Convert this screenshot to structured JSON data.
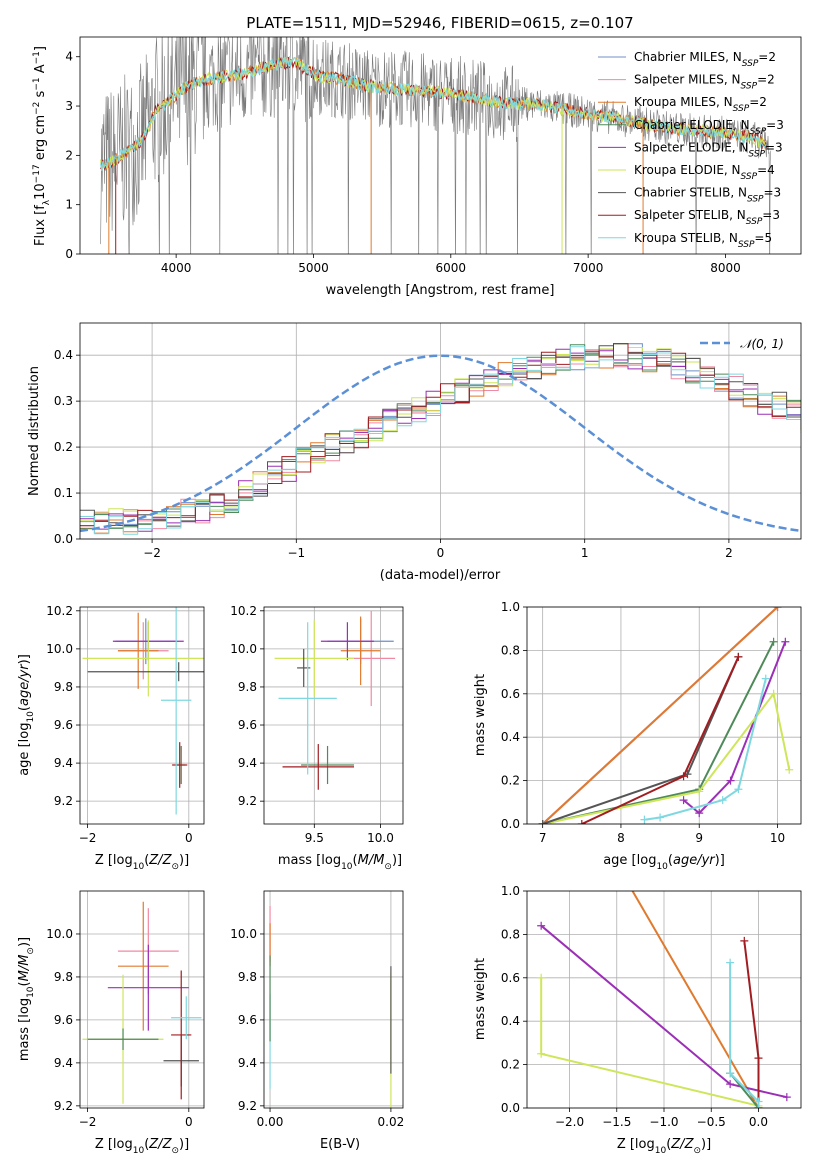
{
  "title": "PLATE=1511, MJD=52946, FIBERID=0615, z=0.107",
  "colors": {
    "Chabrier MILES": "#6f8fc8",
    "Salpeter MILES": "#f08aa4",
    "Kroupa MILES": "#e07a2e",
    "Chabrier ELODIE": "#4f8a5a",
    "Salpeter ELODIE": "#9b2fb5",
    "Kroupa ELODIE": "#cde65a",
    "Chabrier STELIB": "#555555",
    "Salpeter STELIB": "#a11d21",
    "Kroupa STELIB": "#7fd8e0",
    "data": "#7a7a7a",
    "normal": "#5b8fd6"
  },
  "legend_spectrum": [
    {
      "key": "Chabrier MILES",
      "pre": "Chabrier MILES, N",
      "sub": "SSP",
      "post": "=2"
    },
    {
      "key": "Salpeter MILES",
      "pre": "Salpeter MILES, N",
      "sub": "SSP",
      "post": "=2"
    },
    {
      "key": "Kroupa MILES",
      "pre": "Kroupa MILES, N",
      "sub": "SSP",
      "post": "=2"
    },
    {
      "key": "Chabrier ELODIE",
      "pre": "Chabrier ELODIE, N",
      "sub": "SSP",
      "post": "=3"
    },
    {
      "key": "Salpeter ELODIE",
      "pre": "Salpeter ELODIE, N",
      "sub": "SSP",
      "post": "=3"
    },
    {
      "key": "Kroupa ELODIE",
      "pre": "Kroupa ELODIE, N",
      "sub": "SSP",
      "post": "=4"
    },
    {
      "key": "Chabrier STELIB",
      "pre": "Chabrier STELIB, N",
      "sub": "SSP",
      "post": "=3"
    },
    {
      "key": "Salpeter STELIB",
      "pre": "Salpeter STELIB, N",
      "sub": "SSP",
      "post": "=3"
    },
    {
      "key": "Kroupa STELIB",
      "pre": "Kroupa STELIB, N",
      "sub": "SSP",
      "post": "=5"
    }
  ],
  "legend_hist": "𝒩(0, 1)",
  "chart_data": [
    {
      "id": "spectrum",
      "type": "line",
      "xlabel": "wavelength [Angstrom, rest frame]",
      "ylabel": "Flux [f_λ10^-17 erg cm^-2 s^-1 A^-1]",
      "xlim": [
        3300,
        8550
      ],
      "ylim": [
        0,
        4.4
      ],
      "xticks": [
        4000,
        5000,
        6000,
        7000,
        8000
      ],
      "yticks": [
        0,
        1,
        2,
        3,
        4
      ],
      "model_continuum": {
        "x": [
          3450,
          3550,
          3650,
          3750,
          3850,
          3950,
          4050,
          4150,
          4250,
          4350,
          4450,
          4550,
          4650,
          4750,
          4850,
          4950,
          5050,
          5200,
          5400,
          5600,
          5800,
          6000,
          6200,
          6400,
          6600,
          6800,
          7000,
          7200,
          7400,
          7600,
          7800,
          8000,
          8200,
          8300
        ],
        "y": [
          1.8,
          1.9,
          2.1,
          2.3,
          2.9,
          3.1,
          3.35,
          3.5,
          3.55,
          3.6,
          3.65,
          3.7,
          3.8,
          3.85,
          3.9,
          3.75,
          3.6,
          3.55,
          3.4,
          3.35,
          3.3,
          3.25,
          3.15,
          3.05,
          3.05,
          2.95,
          2.85,
          2.75,
          2.65,
          2.55,
          2.5,
          2.45,
          2.35,
          2.2
        ]
      }
    },
    {
      "id": "residuals",
      "type": "bar",
      "xlabel": "(data-model)/error",
      "ylabel": "Normed distribution",
      "xlim": [
        -2.5,
        2.5
      ],
      "ylim": [
        0,
        0.47
      ],
      "xticks": [
        -2,
        -1,
        0,
        1,
        2
      ],
      "xtick_labels": [
        "−2",
        "−1",
        "0",
        "1",
        "2"
      ],
      "yticks": [
        0.0,
        0.1,
        0.2,
        0.3,
        0.4
      ],
      "ytick_labels": [
        "0.0",
        "0.1",
        "0.2",
        "0.3",
        "0.4"
      ],
      "bin_width": 0.1,
      "bin_start": -2.5,
      "histogram_mean": [
        0.035,
        0.035,
        0.04,
        0.04,
        0.04,
        0.045,
        0.05,
        0.06,
        0.065,
        0.075,
        0.085,
        0.1,
        0.12,
        0.14,
        0.15,
        0.17,
        0.18,
        0.2,
        0.21,
        0.225,
        0.24,
        0.255,
        0.27,
        0.28,
        0.295,
        0.31,
        0.32,
        0.33,
        0.345,
        0.355,
        0.365,
        0.375,
        0.38,
        0.39,
        0.395,
        0.4,
        0.4,
        0.4,
        0.395,
        0.39,
        0.385,
        0.375,
        0.365,
        0.355,
        0.34,
        0.33,
        0.315,
        0.3,
        0.29,
        0.275,
        0.26,
        0.245,
        0.23,
        0.215,
        0.2,
        0.185,
        0.17,
        0.155,
        0.14,
        0.125,
        0.11,
        0.1,
        0.09,
        0.08,
        0.07,
        0.06,
        0.055,
        0.05,
        0.045,
        0.04,
        0.035,
        0.035,
        0.03,
        0.03,
        0.03
      ]
    },
    {
      "id": "age_vs_Z",
      "type": "scatter",
      "xlabel": "Z [log10(Z/Z⊙)]",
      "ylabel": "age  [log10(age/yr)]",
      "xlim": [
        -2.15,
        0.3
      ],
      "ylim": [
        9.08,
        10.22
      ],
      "xticks": [
        -2,
        0
      ],
      "xtick_labels": [
        "−2",
        "0"
      ],
      "yticks": [
        9.2,
        9.4,
        9.6,
        9.8,
        10.0,
        10.2
      ],
      "ytick_labels": [
        "9.2",
        "9.4",
        "9.6",
        "9.8",
        "10.0",
        "10.2"
      ],
      "points": [
        {
          "key": "Chabrier MILES",
          "x": -0.85,
          "y": 10.04,
          "xerr": 0.6,
          "yerr": 0.12
        },
        {
          "key": "Salpeter MILES",
          "x": -0.9,
          "y": 9.99,
          "xerr": 0.5,
          "yerr": 0.15
        },
        {
          "key": "Kroupa MILES",
          "x": -1.0,
          "y": 9.99,
          "xerr": 0.4,
          "yerr": 0.2
        },
        {
          "key": "Chabrier ELODIE",
          "x": -0.15,
          "y": 9.39,
          "xerr": 0.08,
          "yerr": 0.1
        },
        {
          "key": "Salpeter ELODIE",
          "x": -0.8,
          "y": 10.04,
          "xerr": 0.7,
          "yerr": 0.1
        },
        {
          "key": "Kroupa ELODIE",
          "x": -0.8,
          "y": 9.95,
          "xerr": 1.3,
          "yerr": 0.2
        },
        {
          "key": "Chabrier STELIB",
          "x": -0.2,
          "y": 9.88,
          "xerr": 1.8,
          "yerr": 0.05
        },
        {
          "key": "Salpeter STELIB",
          "x": -0.18,
          "y": 9.39,
          "xerr": 0.15,
          "yerr": 0.12
        },
        {
          "key": "Kroupa STELIB",
          "x": -0.25,
          "y": 9.73,
          "xerr": 0.3,
          "yerr": 0.6
        }
      ]
    },
    {
      "id": "age_vs_mass",
      "type": "scatter",
      "xlabel": "mass [log10(M/M⊙)]",
      "ylabel": "",
      "xlim": [
        9.12,
        10.17
      ],
      "ylim": [
        9.08,
        10.22
      ],
      "xticks": [
        9.5,
        10.0
      ],
      "xtick_labels": [
        "9.5",
        "10.0"
      ],
      "yticks": [
        9.2,
        9.4,
        9.6,
        9.8,
        10.0,
        10.2
      ],
      "ytick_labels": [
        "9.2",
        "9.4",
        "9.6",
        "9.8",
        "10.0",
        "10.2"
      ],
      "points": [
        {
          "key": "Chabrier MILES",
          "x": 9.85,
          "y": 10.04,
          "xerr": 0.25,
          "yerr": 0.12
        },
        {
          "key": "Salpeter MILES",
          "x": 9.93,
          "y": 9.95,
          "xerr": 0.18,
          "yerr": 0.25
        },
        {
          "key": "Kroupa MILES",
          "x": 9.85,
          "y": 9.99,
          "xerr": 0.15,
          "yerr": 0.18
        },
        {
          "key": "Chabrier ELODIE",
          "x": 9.6,
          "y": 9.39,
          "xerr": 0.2,
          "yerr": 0.1
        },
        {
          "key": "Salpeter ELODIE",
          "x": 9.75,
          "y": 10.04,
          "xerr": 0.2,
          "yerr": 0.1
        },
        {
          "key": "Kroupa ELODIE",
          "x": 9.5,
          "y": 9.95,
          "xerr": 0.3,
          "yerr": 0.2
        },
        {
          "key": "Chabrier STELIB",
          "x": 9.42,
          "y": 9.9,
          "xerr": 0.05,
          "yerr": 0.1
        },
        {
          "key": "Salpeter STELIB",
          "x": 9.53,
          "y": 9.38,
          "xerr": 0.27,
          "yerr": 0.12
        },
        {
          "key": "Kroupa STELIB",
          "x": 9.45,
          "y": 9.74,
          "xerr": 0.22,
          "yerr": 0.4
        }
      ]
    },
    {
      "id": "weight_vs_age",
      "type": "line",
      "xlabel": "age  [log10(age/yr)]",
      "ylabel": "mass weight",
      "xlim": [
        6.8,
        10.3
      ],
      "ylim": [
        0,
        1.0
      ],
      "xticks": [
        7,
        8,
        9,
        10
      ],
      "xtick_labels": [
        "7",
        "8",
        "9",
        "10"
      ],
      "yticks": [
        0.0,
        0.2,
        0.4,
        0.6,
        0.8,
        1.0
      ],
      "ytick_labels": [
        "0.0",
        "0.2",
        "0.4",
        "0.6",
        "0.8",
        "1.0"
      ],
      "series": [
        {
          "key": "Chabrier MILES",
          "x": [
            7.0,
            10.0
          ],
          "y": [
            0.0,
            1.0
          ]
        },
        {
          "key": "Salpeter MILES",
          "x": [
            7.0,
            10.0
          ],
          "y": [
            0.0,
            1.0
          ]
        },
        {
          "key": "Kroupa MILES",
          "x": [
            7.0,
            10.0
          ],
          "y": [
            0.0,
            1.0
          ]
        },
        {
          "key": "Chabrier ELODIE",
          "x": [
            7.0,
            9.0,
            9.95
          ],
          "y": [
            0.0,
            0.16,
            0.84
          ]
        },
        {
          "key": "Salpeter ELODIE",
          "x": [
            8.8,
            9.0,
            9.4,
            10.1
          ],
          "y": [
            0.11,
            0.05,
            0.2,
            0.84
          ]
        },
        {
          "key": "Kroupa ELODIE",
          "x": [
            7.0,
            9.0,
            9.95,
            10.15
          ],
          "y": [
            0.0,
            0.15,
            0.6,
            0.25
          ]
        },
        {
          "key": "Chabrier STELIB",
          "x": [
            7.0,
            8.85,
            9.5
          ],
          "y": [
            0.0,
            0.23,
            0.77
          ]
        },
        {
          "key": "Salpeter STELIB",
          "x": [
            7.5,
            8.8,
            9.5
          ],
          "y": [
            0.0,
            0.22,
            0.77
          ]
        },
        {
          "key": "Kroupa STELIB",
          "x": [
            8.3,
            8.5,
            9.3,
            9.5,
            9.85
          ],
          "y": [
            0.02,
            0.03,
            0.11,
            0.16,
            0.67
          ]
        }
      ]
    },
    {
      "id": "mass_vs_Z",
      "type": "scatter",
      "xlabel": "Z [log10(Z/Z⊙)]",
      "ylabel": "mass [log10(M/M⊙)]",
      "xlim": [
        -2.15,
        0.3
      ],
      "ylim": [
        9.19,
        10.2
      ],
      "xticks": [
        -2,
        0
      ],
      "xtick_labels": [
        "−2",
        "0"
      ],
      "yticks": [
        9.2,
        9.4,
        9.6,
        9.8,
        10.0
      ],
      "ytick_labels": [
        "9.2",
        "9.4",
        "9.6",
        "9.8",
        "10.0"
      ],
      "points": [
        {
          "key": "Salpeter MILES",
          "x": -0.8,
          "y": 9.92,
          "xerr": 0.6,
          "yerr": 0.2
        },
        {
          "key": "Kroupa MILES",
          "x": -0.9,
          "y": 9.85,
          "xerr": 0.5,
          "yerr": 0.3
        },
        {
          "key": "Salpeter ELODIE",
          "x": -0.8,
          "y": 9.75,
          "xerr": 0.8,
          "yerr": 0.2
        },
        {
          "key": "Kroupa ELODIE",
          "x": -1.3,
          "y": 9.51,
          "xerr": 0.8,
          "yerr": 0.3
        },
        {
          "key": "Chabrier ELODIE",
          "x": -1.3,
          "y": 9.51,
          "xerr": 0.7,
          "yerr": 0.05
        },
        {
          "key": "Chabrier STELIB",
          "x": -0.15,
          "y": 9.41,
          "xerr": 0.35,
          "yerr": 0.12
        },
        {
          "key": "Salpeter STELIB",
          "x": -0.15,
          "y": 9.53,
          "xerr": 0.2,
          "yerr": 0.3
        },
        {
          "key": "Kroupa STELIB",
          "x": -0.05,
          "y": 9.61,
          "xerr": 0.3,
          "yerr": 0.1
        }
      ]
    },
    {
      "id": "mass_vs_ebv",
      "type": "scatter",
      "xlabel": "E(B-V)",
      "ylabel": "",
      "xlim": [
        -0.001,
        0.022
      ],
      "ylim": [
        9.19,
        10.2
      ],
      "xticks": [
        0.0,
        0.02
      ],
      "xtick_labels": [
        "0.00",
        "0.02"
      ],
      "yticks": [
        9.2,
        9.4,
        9.6,
        9.8,
        10.0
      ],
      "ytick_labels": [
        "9.2",
        "9.4",
        "9.6",
        "9.8",
        "10.0"
      ],
      "points": [
        {
          "key": "Salpeter MILES",
          "x": 0.0,
          "y": 10.0,
          "xerr": 0,
          "yerr": 0.13
        },
        {
          "key": "Kroupa MILES",
          "x": 0.0,
          "y": 9.95,
          "xerr": 0,
          "yerr": 0.1
        },
        {
          "key": "Kroupa STELIB",
          "x": 0.0,
          "y": 9.5,
          "xerr": 0,
          "yerr": 0.22
        },
        {
          "key": "Chabrier ELODIE",
          "x": 0.0,
          "y": 9.7,
          "xerr": 0,
          "yerr": 0.2
        },
        {
          "key": "Kroupa ELODIE",
          "x": 0.02,
          "y": 9.5,
          "xerr": 0,
          "yerr": 0.32
        },
        {
          "key": "Chabrier STELIB",
          "x": 0.02,
          "y": 9.6,
          "xerr": 0,
          "yerr": 0.25
        }
      ]
    },
    {
      "id": "weight_vs_Z",
      "type": "line",
      "xlabel": "Z [log10(Z/Z⊙)]",
      "ylabel": "mass weight",
      "xlim": [
        -2.45,
        0.45
      ],
      "ylim": [
        0,
        1.0
      ],
      "xticks": [
        -2.0,
        -1.5,
        -1.0,
        -0.5,
        0.0
      ],
      "xtick_labels": [
        "−2.0",
        "−1.5",
        "−1.0",
        "−0.5",
        "0.0"
      ],
      "yticks": [
        0.0,
        0.2,
        0.4,
        0.6,
        0.8,
        1.0
      ],
      "ytick_labels": [
        "0.0",
        "0.2",
        "0.4",
        "0.6",
        "0.8",
        "1.0"
      ],
      "series": [
        {
          "key": "Kroupa MILES",
          "x": [
            -1.4,
            0.0
          ],
          "y": [
            1.05,
            0.0
          ]
        },
        {
          "key": "Salpeter ELODIE",
          "x": [
            -2.3,
            -0.3,
            0.3
          ],
          "y": [
            0.84,
            0.11,
            0.05
          ]
        },
        {
          "key": "Kroupa ELODIE",
          "x": [
            -2.3,
            -2.3,
            0.0
          ],
          "y": [
            0.6,
            0.25,
            0.01
          ]
        },
        {
          "key": "Chabrier ELODIE",
          "x": [
            -0.3,
            0.0
          ],
          "y": [
            0.16,
            0.0
          ]
        },
        {
          "key": "Salpeter STELIB",
          "x": [
            -0.15,
            0.0,
            0.0
          ],
          "y": [
            0.77,
            0.23,
            0.0
          ]
        },
        {
          "key": "Kroupa STELIB",
          "x": [
            -0.3,
            -0.3,
            0.0,
            0.0
          ],
          "y": [
            0.67,
            0.16,
            0.03,
            0.0
          ]
        }
      ]
    }
  ]
}
